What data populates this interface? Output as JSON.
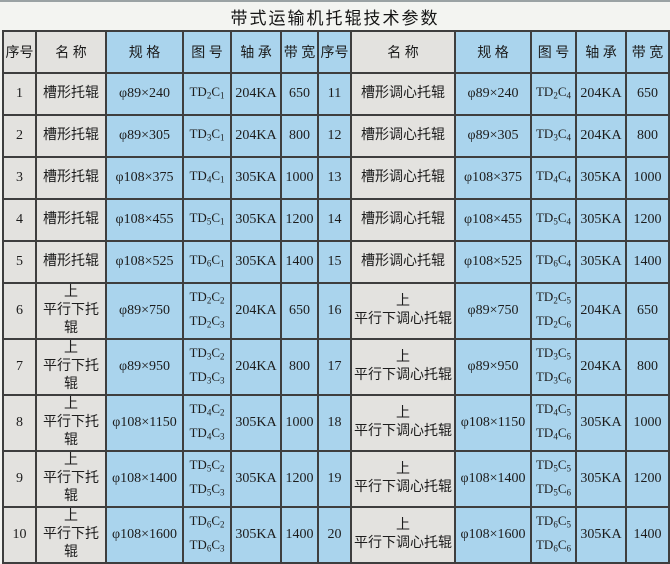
{
  "title": "带式运输机托辊技术参数",
  "colors": {
    "page_bg": "#f3f4f1",
    "cell_gray": "#e3e2df",
    "cell_blue": "#aad4ed",
    "border": "#3e3e3e"
  },
  "table": {
    "headers": [
      "序号",
      "名 称",
      "规 格",
      "图 号",
      "轴 承",
      "带 宽"
    ],
    "rows": [
      {
        "no": "1",
        "name": [
          "槽形托辊"
        ],
        "spec": "φ89×240",
        "figs": [
          {
            "base": "TD",
            "s1": "2",
            "mid": "C",
            "s2": "1"
          }
        ],
        "bearing": "204KA",
        "width": "650"
      },
      {
        "no": "2",
        "name": [
          "槽形托辊"
        ],
        "spec": "φ89×305",
        "figs": [
          {
            "base": "TD",
            "s1": "3",
            "mid": "C",
            "s2": "1"
          }
        ],
        "bearing": "204KA",
        "width": "800"
      },
      {
        "no": "3",
        "name": [
          "槽形托辊"
        ],
        "spec": "φ108×375",
        "figs": [
          {
            "base": "TD",
            "s1": "4",
            "mid": "C",
            "s2": "1"
          }
        ],
        "bearing": "305KA",
        "width": "1000"
      },
      {
        "no": "4",
        "name": [
          "槽形托辊"
        ],
        "spec": "φ108×455",
        "figs": [
          {
            "base": "TD",
            "s1": "5",
            "mid": "C",
            "s2": "1"
          }
        ],
        "bearing": "305KA",
        "width": "1200"
      },
      {
        "no": "5",
        "name": [
          "槽形托辊"
        ],
        "spec": "φ108×525",
        "figs": [
          {
            "base": "TD",
            "s1": "6",
            "mid": "C",
            "s2": "1"
          }
        ],
        "bearing": "305KA",
        "width": "1400"
      },
      {
        "no": "6",
        "name": [
          "上",
          "平行下托辊"
        ],
        "spec": "φ89×750",
        "figs": [
          {
            "base": "TD",
            "s1": "2",
            "mid": "C",
            "s2": "2"
          },
          {
            "base": "TD",
            "s1": "2",
            "mid": "C",
            "s2": "3"
          }
        ],
        "bearing": "204KA",
        "width": "650"
      },
      {
        "no": "7",
        "name": [
          "上",
          "平行下托辊"
        ],
        "spec": "φ89×950",
        "figs": [
          {
            "base": "TD",
            "s1": "3",
            "mid": "C",
            "s2": "2"
          },
          {
            "base": "TD",
            "s1": "3",
            "mid": "C",
            "s2": "3"
          }
        ],
        "bearing": "204KA",
        "width": "800"
      },
      {
        "no": "8",
        "name": [
          "上",
          "平行下托辊"
        ],
        "spec": "φ108×1150",
        "figs": [
          {
            "base": "TD",
            "s1": "4",
            "mid": "C",
            "s2": "2"
          },
          {
            "base": "TD",
            "s1": "4",
            "mid": "C",
            "s2": "3"
          }
        ],
        "bearing": "305KA",
        "width": "1000"
      },
      {
        "no": "9",
        "name": [
          "上",
          "平行下托辊"
        ],
        "spec": "φ108×1400",
        "figs": [
          {
            "base": "TD",
            "s1": "5",
            "mid": "C",
            "s2": "2"
          },
          {
            "base": "TD",
            "s1": "5",
            "mid": "C",
            "s2": "3"
          }
        ],
        "bearing": "305KA",
        "width": "1200"
      },
      {
        "no": "10",
        "name": [
          "上",
          "平行下托辊"
        ],
        "spec": "φ108×1600",
        "figs": [
          {
            "base": "TD",
            "s1": "6",
            "mid": "C",
            "s2": "2"
          },
          {
            "base": "TD",
            "s1": "6",
            "mid": "C",
            "s2": "3"
          }
        ],
        "bearing": "305KA",
        "width": "1400"
      },
      {
        "no": "11",
        "name": [
          "槽形调心托辊"
        ],
        "spec": "φ89×240",
        "figs": [
          {
            "base": "TD",
            "s1": "2",
            "mid": "C",
            "s2": "4"
          }
        ],
        "bearing": "204KA",
        "width": "650"
      },
      {
        "no": "12",
        "name": [
          "槽形调心托辊"
        ],
        "spec": "φ89×305",
        "figs": [
          {
            "base": "TD",
            "s1": "3",
            "mid": "C",
            "s2": "4"
          }
        ],
        "bearing": "204KA",
        "width": "800"
      },
      {
        "no": "13",
        "name": [
          "槽形调心托辊"
        ],
        "spec": "φ108×375",
        "figs": [
          {
            "base": "TD",
            "s1": "4",
            "mid": "C",
            "s2": "4"
          }
        ],
        "bearing": "305KA",
        "width": "1000"
      },
      {
        "no": "14",
        "name": [
          "槽形调心托辊"
        ],
        "spec": "φ108×455",
        "figs": [
          {
            "base": "TD",
            "s1": "5",
            "mid": "C",
            "s2": "4"
          }
        ],
        "bearing": "305KA",
        "width": "1200"
      },
      {
        "no": "15",
        "name": [
          "槽形调心托辊"
        ],
        "spec": "φ108×525",
        "figs": [
          {
            "base": "TD",
            "s1": "6",
            "mid": "C",
            "s2": "4"
          }
        ],
        "bearing": "305KA",
        "width": "1400"
      },
      {
        "no": "16",
        "name": [
          "上",
          "平行下调心托辊"
        ],
        "spec": "φ89×750",
        "figs": [
          {
            "base": "TD",
            "s1": "2",
            "mid": "C",
            "s2": "5"
          },
          {
            "base": "TD",
            "s1": "2",
            "mid": "C",
            "s2": "6"
          }
        ],
        "bearing": "204KA",
        "width": "650"
      },
      {
        "no": "17",
        "name": [
          "上",
          "平行下调心托辊"
        ],
        "spec": "φ89×950",
        "figs": [
          {
            "base": "TD",
            "s1": "3",
            "mid": "C",
            "s2": "5"
          },
          {
            "base": "TD",
            "s1": "3",
            "mid": "C",
            "s2": "6"
          }
        ],
        "bearing": "204KA",
        "width": "800"
      },
      {
        "no": "18",
        "name": [
          "上",
          "平行下调心托辊"
        ],
        "spec": "φ108×1150",
        "figs": [
          {
            "base": "TD",
            "s1": "4",
            "mid": "C",
            "s2": "5"
          },
          {
            "base": "TD",
            "s1": "4",
            "mid": "C",
            "s2": "6"
          }
        ],
        "bearing": "305KA",
        "width": "1000"
      },
      {
        "no": "19",
        "name": [
          "上",
          "平行下调心托辊"
        ],
        "spec": "φ108×1400",
        "figs": [
          {
            "base": "TD",
            "s1": "5",
            "mid": "C",
            "s2": "5"
          },
          {
            "base": "TD",
            "s1": "5",
            "mid": "C",
            "s2": "6"
          }
        ],
        "bearing": "305KA",
        "width": "1200"
      },
      {
        "no": "20",
        "name": [
          "上",
          "平行下调心托辊"
        ],
        "spec": "φ108×1600",
        "figs": [
          {
            "base": "TD",
            "s1": "6",
            "mid": "C",
            "s2": "5"
          },
          {
            "base": "TD",
            "s1": "6",
            "mid": "C",
            "s2": "6"
          }
        ],
        "bearing": "305KA",
        "width": "1400"
      }
    ]
  }
}
